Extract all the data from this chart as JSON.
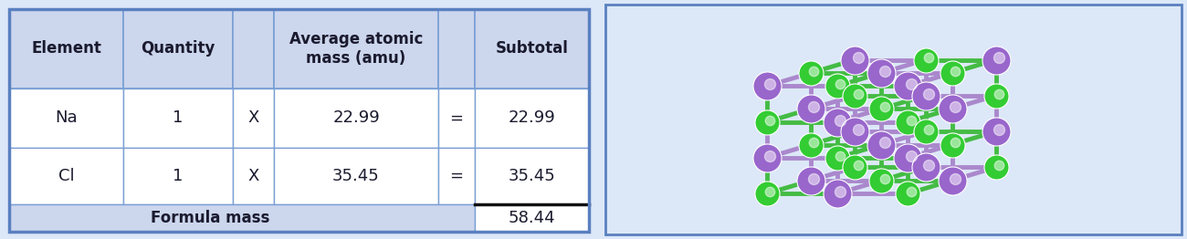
{
  "table_bg_color": "#ccd6ed",
  "white_bg": "#ffffff",
  "text_color": "#1a1a2e",
  "figure_bg": "#dce8f8",
  "border_color": "#7a9fd4",
  "thick_border_color": "#5a80c0",
  "headers": [
    "Element",
    "Quantity",
    "",
    "Average atomic\nmass (amu)",
    "",
    "Subtotal"
  ],
  "data_rows": [
    [
      "Na",
      "1",
      "X",
      "22.99",
      "=",
      "22.99"
    ],
    [
      "Cl",
      "1",
      "X",
      "35.45",
      "=",
      "35.45"
    ]
  ],
  "footer_label": "Formula mass",
  "footer_value": "58.44",
  "na_color": "#9966cc",
  "cl_color": "#33cc33",
  "bond_purple": "#aa88cc",
  "bond_green": "#44bb44",
  "font_size_header": 12,
  "font_size_data": 13,
  "font_size_footer": 12
}
